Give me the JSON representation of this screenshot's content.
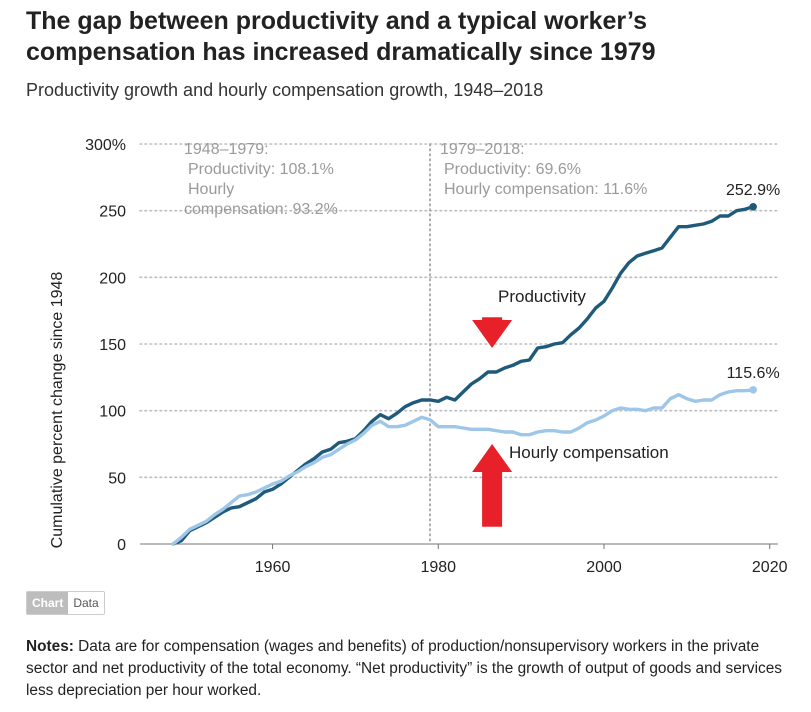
{
  "title": "The gap between productivity and a typical worker’s compensation has increased dramatically since 1979",
  "subtitle": "Productivity growth and hourly compensation growth, 1948–2018",
  "tabs": {
    "chart": "Chart",
    "data": "Data"
  },
  "notes": {
    "label": "Notes:",
    "text": "Data are for compensation (wages and benefits) of production/nonsupervisory workers in the private sector and net productivity of the total economy. “Net productivity” is the growth of output of goods and services less depreciation per hour worked."
  },
  "colors": {
    "productivity": "#1f5a7a",
    "compensation": "#9dc6e8",
    "arrow": "#e8202a",
    "grid": "#bdbdbd",
    "annotation": "#9a9a9a"
  },
  "chart_data": {
    "type": "line",
    "ylabel": "Cumulative percent change since 1948",
    "xlabel": "",
    "xlim": [
      1944,
      2021
    ],
    "ylim": [
      0,
      300
    ],
    "x_ticks": [
      1960,
      1980,
      2000,
      2020
    ],
    "y_ticks": [
      {
        "value": 0,
        "label": "0"
      },
      {
        "value": 50,
        "label": "50"
      },
      {
        "value": 100,
        "label": "100"
      },
      {
        "value": 150,
        "label": "150"
      },
      {
        "value": 200,
        "label": "200"
      },
      {
        "value": 250,
        "label": "250"
      },
      {
        "value": 300,
        "label": "300%"
      }
    ],
    "grid": true,
    "divider_year": 1979,
    "annotations": {
      "period1": [
        "1948–1979:",
        "Productivity: 108.1%",
        "Hourly",
        "compensation: 93.2%"
      ],
      "period2": [
        "1979–2018:",
        "Productivity: 69.6%",
        "Hourly compensation: 11.6%"
      ]
    },
    "arrows": [
      {
        "x": 1986.5,
        "y_from": 170,
        "y_to": 147,
        "direction": "down"
      },
      {
        "x": 1986.5,
        "y_from": 13,
        "y_to": 75,
        "direction": "up"
      }
    ],
    "series": [
      {
        "name": "Productivity",
        "end_label": "252.9%",
        "x": [
          1948,
          1949,
          1950,
          1951,
          1952,
          1953,
          1954,
          1955,
          1956,
          1957,
          1958,
          1959,
          1960,
          1961,
          1962,
          1963,
          1964,
          1965,
          1966,
          1967,
          1968,
          1969,
          1970,
          1971,
          1972,
          1973,
          1974,
          1975,
          1976,
          1977,
          1978,
          1979,
          1980,
          1981,
          1982,
          1983,
          1984,
          1985,
          1986,
          1987,
          1988,
          1989,
          1990,
          1991,
          1992,
          1993,
          1994,
          1995,
          1996,
          1997,
          1998,
          1999,
          2000,
          2001,
          2002,
          2003,
          2004,
          2005,
          2006,
          2007,
          2008,
          2009,
          2010,
          2011,
          2012,
          2013,
          2014,
          2015,
          2016,
          2017,
          2018
        ],
        "values": [
          0,
          2.5,
          10,
          13,
          16,
          20,
          24,
          27,
          28,
          31,
          34,
          39,
          41,
          45,
          50,
          55,
          60,
          64,
          69,
          71,
          76,
          77,
          79,
          85,
          92,
          97,
          94,
          98,
          103,
          106,
          108,
          108.1,
          107,
          110,
          108,
          114,
          120,
          124,
          129,
          129,
          132,
          134,
          137,
          138,
          147,
          148,
          150,
          151,
          157,
          162,
          169,
          177,
          182,
          192,
          203,
          211,
          216,
          218,
          220,
          222,
          230,
          238,
          238,
          239,
          240,
          242,
          246,
          246,
          250,
          251,
          252.9
        ]
      },
      {
        "name": "Hourly compensation",
        "end_label": "115.6%",
        "x": [
          1948,
          1949,
          1950,
          1951,
          1952,
          1953,
          1954,
          1955,
          1956,
          1957,
          1958,
          1959,
          1960,
          1961,
          1962,
          1963,
          1964,
          1965,
          1966,
          1967,
          1968,
          1969,
          1970,
          1971,
          1972,
          1973,
          1974,
          1975,
          1976,
          1977,
          1978,
          1979,
          1980,
          1981,
          1982,
          1983,
          1984,
          1985,
          1986,
          1987,
          1988,
          1989,
          1990,
          1991,
          1992,
          1993,
          1994,
          1995,
          1996,
          1997,
          1998,
          1999,
          2000,
          2001,
          2002,
          2003,
          2004,
          2005,
          2006,
          2007,
          2008,
          2009,
          2010,
          2011,
          2012,
          2013,
          2014,
          2015,
          2016,
          2017,
          2018
        ],
        "values": [
          0,
          5,
          11,
          14,
          17,
          22,
          26,
          31,
          36,
          37,
          39,
          42,
          45,
          47,
          51,
          54,
          58,
          61,
          65,
          67,
          71,
          75,
          78,
          83,
          89,
          92,
          88,
          88,
          89,
          92,
          95,
          93.2,
          88,
          88,
          88,
          87,
          86,
          86,
          86,
          85,
          84,
          84,
          82,
          82,
          84,
          85,
          85,
          84,
          84,
          87,
          91,
          93,
          96,
          100,
          102,
          101,
          101,
          100,
          102,
          102,
          109,
          112,
          109,
          107,
          108,
          108,
          112,
          114,
          115,
          115,
          115.6
        ]
      }
    ]
  }
}
